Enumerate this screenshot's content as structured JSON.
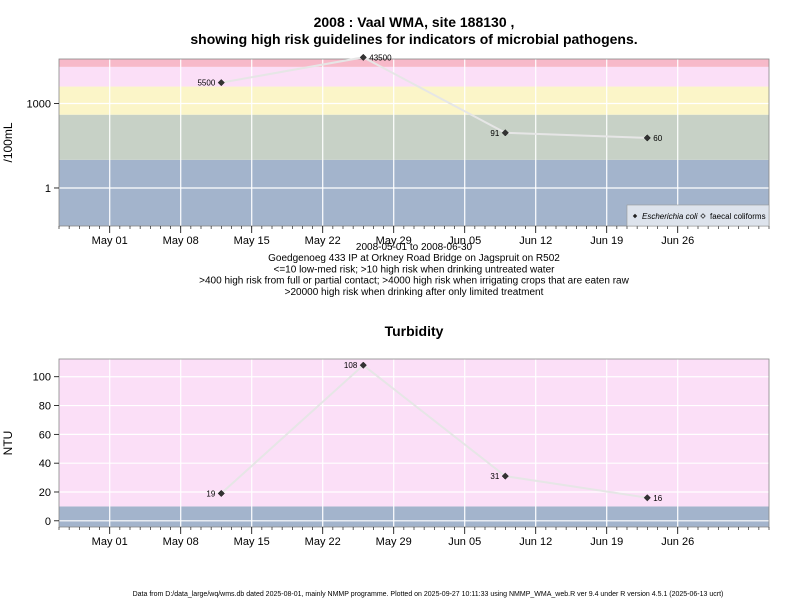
{
  "figure": {
    "title_line1": "2008 : Vaal WMA, site 188130 ,",
    "title_line2": "showing high risk guidelines for indicators of microbial pathogens.",
    "footer": "Data from D:/data_large/wq/wms.db dated 2025-08-01, mainly NMMP programme. Plotted on 2025-09-27 10:11:33 using NMMP_WMA_web.R ver 9.4 under R version 4.5.1 (2025-06-13 ucrt)"
  },
  "chart_data": [
    {
      "type": "line",
      "panel": "microbial",
      "title": "",
      "ylabel": "/100mL",
      "y_scale": "log",
      "yticks": [
        1,
        1000
      ],
      "ytick_labels": [
        "1",
        "1000"
      ],
      "ylim_log10": [
        -1.35,
        4.58
      ],
      "xlim": [
        "2008-04-26",
        "2008-07-05"
      ],
      "xticks": [
        "2008-05-01",
        "2008-05-08",
        "2008-05-15",
        "2008-05-22",
        "2008-05-29",
        "2008-06-05",
        "2008-06-12",
        "2008-06-19",
        "2008-06-26"
      ],
      "xtick_labels": [
        "May 01",
        "May 08",
        "May 15",
        "May 22",
        "May 29",
        "Jun 05",
        "Jun 12",
        "Jun 19",
        "Jun 26"
      ],
      "bands": [
        {
          "from": 0,
          "to": 10,
          "color": "#a3b4cc"
        },
        {
          "from": 10,
          "to": 400,
          "color": "#c7d1c6"
        },
        {
          "from": 400,
          "to": 4000,
          "color": "#fbf5c8"
        },
        {
          "from": 4000,
          "to": 20000,
          "color": "#fbdff7"
        },
        {
          "from": 20000,
          "to": 1000000,
          "color": "#f7b9c9"
        }
      ],
      "series": [
        {
          "name": "Escherichia coli",
          "color": "#e6e6e6",
          "marker": "filled-diamond",
          "x": [
            "2008-05-12",
            "2008-05-26",
            "2008-06-09",
            "2008-06-23"
          ],
          "y": [
            5500,
            43500,
            91,
            60
          ],
          "labels": [
            "5500",
            "43500",
            "91",
            "60"
          ]
        }
      ],
      "legend": {
        "position": "bottom-right",
        "entries": [
          "Escherichia coli",
          "faecal coliforms"
        ]
      },
      "captions": [
        "2008-05-01 to 2008-06-30",
        "Goedgenoeg 433 IP at Orkney Road Bridge on Jagspruit on R502",
        "<=10 low-med risk; >10 high risk when drinking untreated water",
        ">400 high risk from full or partial contact; >4000 high risk when irrigating crops that are eaten raw",
        ">20000 high risk when drinking after only limited treatment"
      ]
    },
    {
      "type": "line",
      "panel": "turbidity",
      "title": "Turbidity",
      "ylabel": "NTU",
      "y_scale": "linear",
      "yticks": [
        0,
        20,
        40,
        60,
        80,
        100
      ],
      "ytick_labels": [
        "0",
        "20",
        "40",
        "60",
        "80",
        "100"
      ],
      "ylim": [
        -4.3,
        112.3
      ],
      "xlim": [
        "2008-04-26",
        "2008-07-05"
      ],
      "xticks": [
        "2008-05-01",
        "2008-05-08",
        "2008-05-15",
        "2008-05-22",
        "2008-05-29",
        "2008-06-05",
        "2008-06-12",
        "2008-06-19",
        "2008-06-26"
      ],
      "xtick_labels": [
        "May 01",
        "May 08",
        "May 15",
        "May 22",
        "May 29",
        "Jun 05",
        "Jun 12",
        "Jun 19",
        "Jun 26"
      ],
      "bands": [
        {
          "from": -10,
          "to": 10,
          "color": "#a3b4cc"
        },
        {
          "from": 10,
          "to": 200,
          "color": "#fbdff7"
        }
      ],
      "series": [
        {
          "name": "",
          "color": "#e6e6e6",
          "marker": "filled-diamond",
          "x": [
            "2008-05-12",
            "2008-05-26",
            "2008-06-09",
            "2008-06-23"
          ],
          "y": [
            19,
            108,
            31,
            16
          ],
          "labels": [
            "19",
            "108",
            "31",
            "16"
          ]
        }
      ]
    }
  ]
}
